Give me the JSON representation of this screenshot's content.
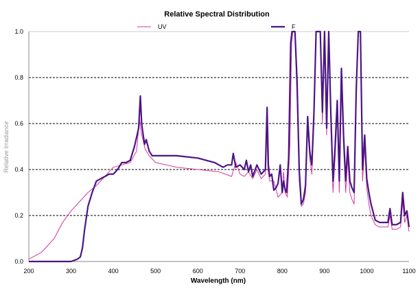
{
  "chart_data": {
    "type": "line",
    "title": "Relative Spectral Distribution",
    "xlabel": "Wavelength (nm)",
    "ylabel": "Relative Irradiance",
    "xlim": [
      200,
      1100
    ],
    "ylim": [
      0,
      1.0
    ],
    "x_ticks": [
      200,
      300,
      400,
      500,
      600,
      700,
      800,
      900,
      1000,
      1100
    ],
    "y_ticks": [
      0.0,
      0.2,
      0.4,
      0.6,
      0.8,
      1.0
    ],
    "y_tick_labels": [
      "0.0",
      "0.2",
      "0.4",
      "0.6",
      "0.8",
      "1.0"
    ],
    "grid": "horizontal dashed",
    "legend_position": "top",
    "series": [
      {
        "name": "UV",
        "color": "#d6369a",
        "x": [
          200,
          230,
          260,
          280,
          300,
          320,
          340,
          360,
          380,
          400,
          420,
          440,
          455,
          462,
          466,
          470,
          475,
          485,
          500,
          550,
          600,
          650,
          680,
          690,
          700,
          710,
          720,
          730,
          740,
          750,
          760,
          763,
          766,
          770,
          780,
          790,
          800,
          803,
          807,
          812,
          818,
          822,
          825,
          830,
          835,
          840,
          845,
          850,
          855,
          860,
          865,
          870,
          875,
          880,
          885,
          890,
          895,
          900,
          905,
          910,
          915,
          920,
          925,
          930,
          935,
          940,
          945,
          950,
          955,
          960,
          965,
          970,
          975,
          980,
          985,
          990,
          995,
          1000,
          1005,
          1010,
          1020,
          1030,
          1040,
          1050,
          1055,
          1060,
          1070,
          1080,
          1085,
          1090,
          1095,
          1100
        ],
        "y": [
          0.01,
          0.04,
          0.1,
          0.17,
          0.22,
          0.26,
          0.3,
          0.33,
          0.37,
          0.41,
          0.42,
          0.43,
          0.48,
          0.62,
          0.56,
          0.53,
          0.49,
          0.46,
          0.43,
          0.41,
          0.4,
          0.39,
          0.37,
          0.43,
          0.38,
          0.37,
          0.39,
          0.36,
          0.4,
          0.36,
          0.38,
          0.59,
          0.4,
          0.35,
          0.35,
          0.28,
          0.3,
          0.39,
          0.3,
          0.28,
          0.5,
          0.95,
          1.0,
          1.0,
          0.7,
          0.35,
          0.24,
          0.25,
          0.3,
          0.58,
          0.45,
          0.38,
          0.6,
          1.0,
          1.0,
          1.0,
          0.6,
          1.0,
          0.55,
          1.0,
          0.6,
          0.3,
          0.45,
          0.65,
          0.3,
          0.75,
          0.5,
          0.3,
          0.45,
          0.3,
          0.27,
          0.25,
          0.7,
          1.0,
          1.0,
          0.35,
          0.5,
          0.32,
          0.25,
          0.2,
          0.16,
          0.15,
          0.15,
          0.15,
          0.2,
          0.14,
          0.14,
          0.15,
          0.26,
          0.17,
          0.2,
          0.13
        ]
      },
      {
        "name": "F",
        "color": "#4b1585",
        "x": [
          200,
          250,
          300,
          315,
          322,
          327,
          332,
          340,
          350,
          360,
          370,
          380,
          390,
          400,
          410,
          420,
          430,
          440,
          450,
          455,
          460,
          464,
          467,
          470,
          474,
          478,
          485,
          492,
          500,
          550,
          600,
          640,
          650,
          660,
          670,
          680,
          684,
          690,
          700,
          710,
          715,
          720,
          725,
          730,
          740,
          750,
          760,
          764,
          767,
          770,
          775,
          780,
          785,
          790,
          795,
          800,
          803,
          807,
          810,
          815,
          820,
          823,
          827,
          830,
          835,
          840,
          845,
          850,
          855,
          860,
          865,
          870,
          875,
          880,
          885,
          890,
          895,
          900,
          905,
          910,
          915,
          920,
          925,
          930,
          935,
          940,
          945,
          950,
          955,
          960,
          965,
          970,
          975,
          980,
          985,
          990,
          995,
          1000,
          1005,
          1010,
          1020,
          1030,
          1040,
          1050,
          1055,
          1060,
          1070,
          1080,
          1085,
          1090,
          1095,
          1100
        ],
        "y": [
          0.0,
          0.0,
          0.0,
          0.01,
          0.02,
          0.06,
          0.14,
          0.24,
          0.3,
          0.35,
          0.36,
          0.37,
          0.38,
          0.38,
          0.4,
          0.43,
          0.43,
          0.44,
          0.5,
          0.54,
          0.58,
          0.72,
          0.6,
          0.56,
          0.51,
          0.53,
          0.48,
          0.46,
          0.46,
          0.46,
          0.45,
          0.43,
          0.42,
          0.41,
          0.42,
          0.42,
          0.47,
          0.41,
          0.42,
          0.4,
          0.44,
          0.39,
          0.42,
          0.37,
          0.42,
          0.38,
          0.4,
          0.67,
          0.42,
          0.37,
          0.38,
          0.31,
          0.32,
          0.34,
          0.42,
          0.3,
          0.35,
          0.31,
          0.3,
          0.45,
          0.95,
          1.0,
          1.0,
          1.0,
          0.78,
          0.4,
          0.25,
          0.27,
          0.33,
          0.63,
          0.48,
          0.42,
          0.65,
          1.0,
          1.0,
          1.0,
          0.65,
          1.0,
          0.58,
          1.0,
          0.64,
          0.35,
          0.5,
          0.7,
          0.35,
          0.84,
          0.55,
          0.35,
          0.5,
          0.35,
          0.32,
          0.3,
          0.75,
          1.0,
          1.0,
          0.4,
          0.55,
          0.36,
          0.3,
          0.25,
          0.18,
          0.17,
          0.17,
          0.17,
          0.23,
          0.16,
          0.16,
          0.17,
          0.3,
          0.2,
          0.22,
          0.15
        ]
      }
    ]
  }
}
